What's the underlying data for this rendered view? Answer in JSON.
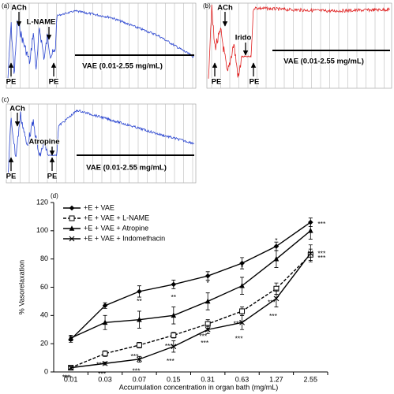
{
  "panels": [
    {
      "label": "(a)",
      "texts": [
        "ACh",
        "L-NAME",
        "PE",
        "PE",
        "VAE (0.01-2.55 mg/mL)"
      ],
      "color": "#2a45d0"
    },
    {
      "label": "(b)",
      "texts": [
        "ACh",
        "Irido",
        "PE",
        "PE",
        "VAE (0.01-2.55 mg/mL)"
      ],
      "color": "#e02020"
    },
    {
      "label": "(c)",
      "texts": [
        "ACh",
        "Atropine",
        "PE",
        "PE",
        "VAE (0.01-2.55 mg/mL)"
      ],
      "color": "#2a45d0"
    }
  ],
  "chart_data": {
    "type": "line",
    "panel_label": "(d)",
    "x_label": "Accumulation concentration in organ bath (mg/mL)",
    "y_label": "% Vasorelaxation",
    "categories": [
      "0.01",
      "0.03",
      "0.07",
      "0.15",
      "0.31",
      "0.63",
      "1.27",
      "2.55"
    ],
    "ylim": [
      0,
      120
    ],
    "yticks": [
      0,
      20,
      40,
      60,
      80,
      100,
      120
    ],
    "series": [
      {
        "name": "+E + VAE",
        "color": "#000000",
        "marker": "diamond",
        "line_style": "solid",
        "values": [
          23,
          47,
          57,
          62,
          68,
          77,
          89,
          106
        ],
        "errors": [
          2,
          2,
          4,
          3,
          3,
          4,
          3,
          3
        ],
        "annotations": [
          null,
          null,
          null,
          null,
          null,
          null,
          null,
          null
        ]
      },
      {
        "name": "+E + VAE + L-NAME",
        "color": "#000000",
        "marker": "square-open",
        "line_style": "dashed",
        "values": [
          3,
          13,
          19,
          26,
          34,
          43,
          59,
          83
        ],
        "errors": [
          1,
          2,
          2,
          2,
          3,
          3,
          4,
          4
        ],
        "annotations": [
          "***",
          "***",
          "***",
          "***",
          "***",
          "***",
          "***",
          "***"
        ]
      },
      {
        "name": "+E + VAE + Atropine",
        "color": "#000000",
        "marker": "triangle",
        "line_style": "solid",
        "values": [
          24,
          35,
          37,
          40,
          50,
          61,
          80,
          100
        ],
        "errors": [
          2,
          5,
          6,
          6,
          6,
          6,
          6,
          6
        ],
        "annotations": [
          null,
          "*",
          "**",
          "**",
          "*",
          "*",
          "*",
          "***"
        ]
      },
      {
        "name": "+E + VAE + Indomethacin",
        "color": "#000000",
        "marker": "x",
        "line_style": "solid",
        "values": [
          3,
          6,
          9,
          18,
          30,
          35,
          52,
          84
        ],
        "errors": [
          1,
          1,
          2,
          4,
          3,
          5,
          6,
          6
        ],
        "annotations": [
          "***",
          "***",
          "***",
          "***",
          "***",
          "***",
          "***",
          "***"
        ]
      }
    ]
  }
}
